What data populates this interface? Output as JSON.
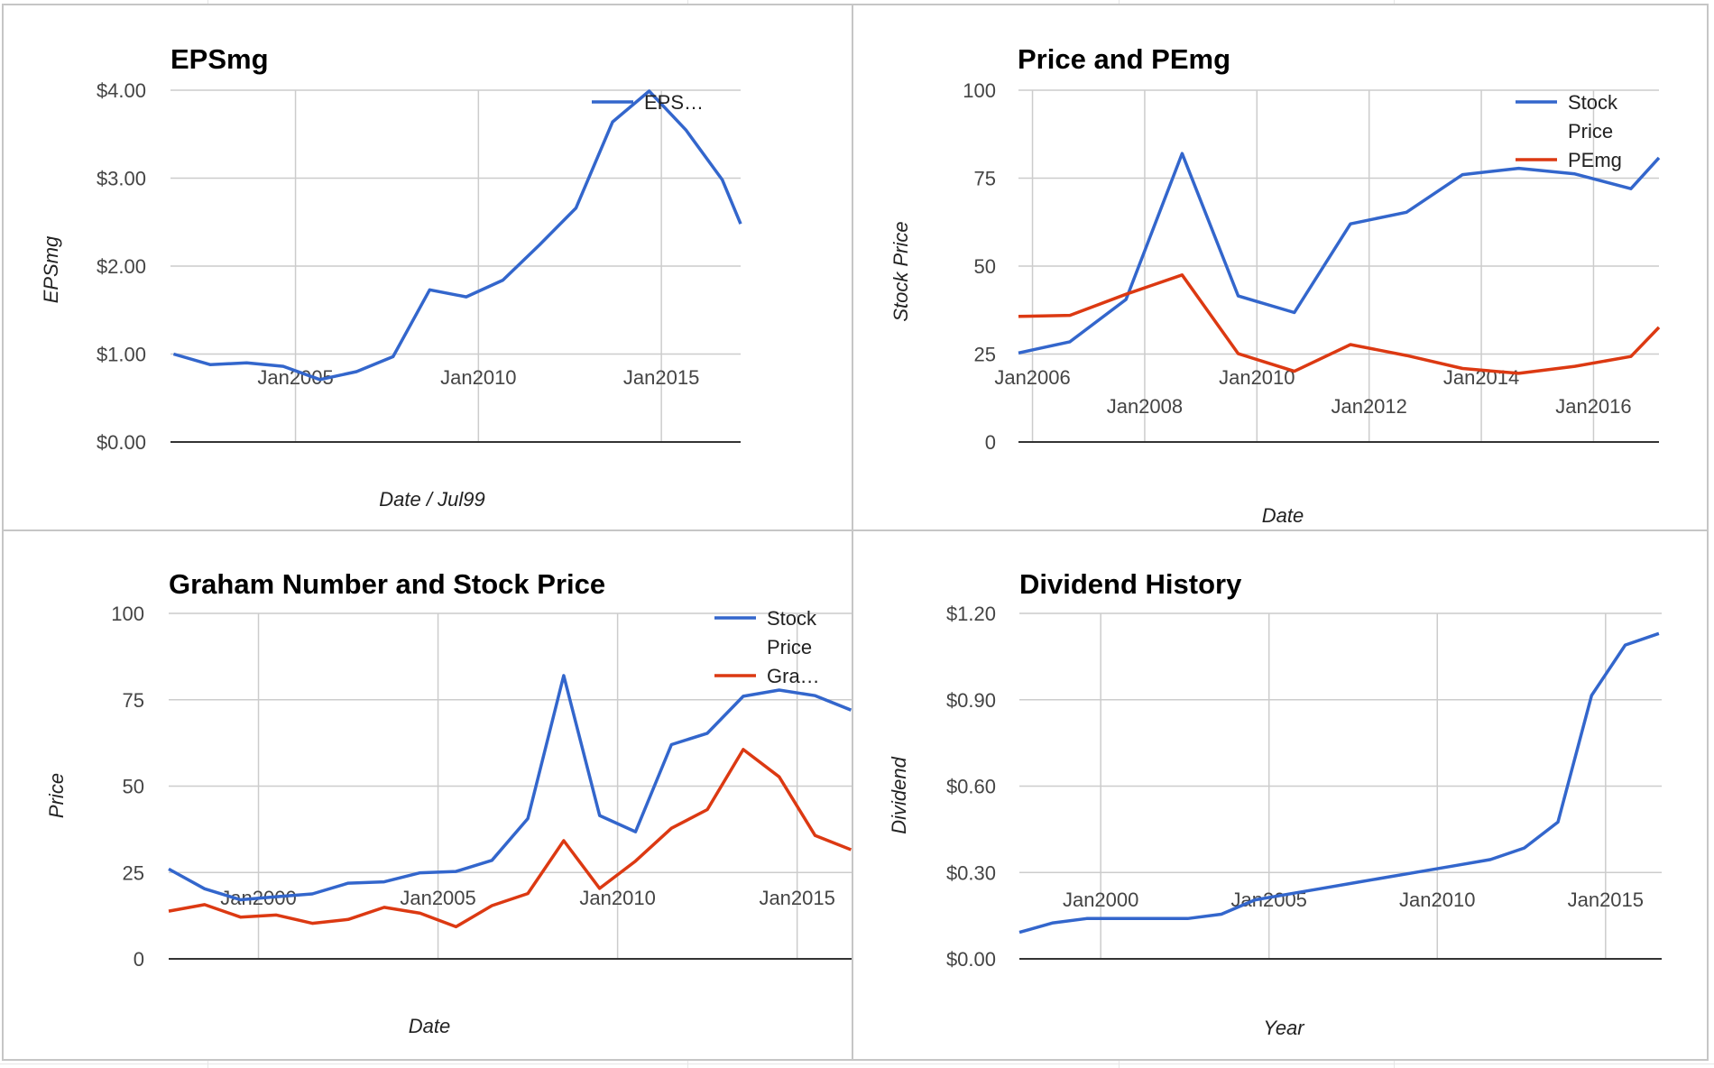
{
  "colors": {
    "blue": "#3366cc",
    "red": "#dc3912",
    "grid": "#cccccc",
    "baseline": "#333333"
  },
  "chart_data": [
    {
      "type": "line",
      "title": "EPSmg",
      "xlabel": "Date / Jul99",
      "ylabel": "EPSmg",
      "x_ticks": [
        "Jan2005",
        "Jan2010",
        "Jan2015"
      ],
      "y_ticks": [
        "$0.00",
        "$1.00",
        "$2.00",
        "$3.00",
        "$4.00"
      ],
      "xlim": [
        "2001-08-01",
        "2017-03-01"
      ],
      "ylim": [
        0,
        4
      ],
      "grid": true,
      "legend_position": "right",
      "series": [
        {
          "name": "EPS…",
          "color": "#3366cc",
          "points": [
            [
              "2001-09-01",
              1.0
            ],
            [
              "2002-09-01",
              0.88
            ],
            [
              "2003-09-01",
              0.9
            ],
            [
              "2004-09-01",
              0.86
            ],
            [
              "2005-09-01",
              0.71
            ],
            [
              "2006-09-01",
              0.8
            ],
            [
              "2007-09-01",
              0.97
            ],
            [
              "2008-09-01",
              1.73
            ],
            [
              "2009-09-01",
              1.65
            ],
            [
              "2010-09-01",
              1.84
            ],
            [
              "2011-09-01",
              2.24
            ],
            [
              "2012-09-01",
              2.66
            ],
            [
              "2013-09-01",
              3.64
            ],
            [
              "2014-09-01",
              3.99
            ],
            [
              "2015-09-01",
              3.55
            ],
            [
              "2016-09-01",
              2.98
            ],
            [
              "2017-03-01",
              2.48
            ]
          ]
        }
      ]
    },
    {
      "type": "line",
      "title": "Price and PEmg",
      "xlabel": "Date",
      "ylabel": "Stock Price",
      "x_ticks": [
        "Jan2006",
        "Jan2008",
        "Jan2010",
        "Jan2012",
        "Jan2014",
        "Jan2016"
      ],
      "y_ticks": [
        "0",
        "25",
        "50",
        "75",
        "100"
      ],
      "xlim": [
        "2005-10-01",
        "2017-03-01"
      ],
      "ylim": [
        0,
        100
      ],
      "grid": true,
      "legend_position": "right",
      "series": [
        {
          "name": "Stock Price",
          "color": "#3366cc",
          "points": [
            [
              "2005-10-01",
              25.3
            ],
            [
              "2006-09-01",
              28.5
            ],
            [
              "2007-09-01",
              40.5
            ],
            [
              "2008-09-01",
              82.0
            ],
            [
              "2009-09-01",
              41.5
            ],
            [
              "2010-09-01",
              36.8
            ],
            [
              "2011-09-01",
              62.0
            ],
            [
              "2012-09-01",
              65.3
            ],
            [
              "2013-09-01",
              76.0
            ],
            [
              "2014-09-01",
              77.8
            ],
            [
              "2015-09-01",
              76.2
            ],
            [
              "2016-09-01",
              72.0
            ],
            [
              "2017-03-01",
              80.8
            ]
          ]
        },
        {
          "name": "PEmg",
          "color": "#dc3912",
          "points": [
            [
              "2005-10-01",
              35.7
            ],
            [
              "2006-09-01",
              36.0
            ],
            [
              "2007-09-01",
              42.0
            ],
            [
              "2008-09-01",
              47.5
            ],
            [
              "2009-09-01",
              25.1
            ],
            [
              "2010-09-01",
              20.1
            ],
            [
              "2011-09-01",
              27.7
            ],
            [
              "2012-09-01",
              24.6
            ],
            [
              "2013-09-01",
              20.9
            ],
            [
              "2014-09-01",
              19.5
            ],
            [
              "2015-09-01",
              21.5
            ],
            [
              "2016-09-01",
              24.3
            ],
            [
              "2017-03-01",
              32.6
            ]
          ]
        }
      ]
    },
    {
      "type": "line",
      "title": "Graham Number and Stock Price",
      "xlabel": "Date",
      "ylabel": "Price",
      "x_ticks": [
        "Jan2000",
        "Jan2005",
        "Jan2010",
        "Jan2015"
      ],
      "y_ticks": [
        "0",
        "25",
        "50",
        "75",
        "100"
      ],
      "xlim": [
        "1997-07-01",
        "2016-09-01"
      ],
      "ylim": [
        0,
        100
      ],
      "grid": true,
      "legend_position": "right",
      "series": [
        {
          "name": "Stock Price",
          "color": "#3366cc",
          "points": [
            [
              "1997-07-01",
              26.0
            ],
            [
              "1998-07-01",
              20.3
            ],
            [
              "1999-07-01",
              17.1
            ],
            [
              "2000-07-01",
              18.0
            ],
            [
              "2001-07-01",
              18.8
            ],
            [
              "2002-07-01",
              21.9
            ],
            [
              "2003-07-01",
              22.3
            ],
            [
              "2004-07-01",
              24.9
            ],
            [
              "2005-07-01",
              25.3
            ],
            [
              "2006-07-01",
              28.5
            ],
            [
              "2007-07-01",
              40.6
            ],
            [
              "2008-07-01",
              82.0
            ],
            [
              "2009-07-01",
              41.5
            ],
            [
              "2010-07-01",
              36.8
            ],
            [
              "2011-07-01",
              62.0
            ],
            [
              "2012-07-01",
              65.3
            ],
            [
              "2013-07-01",
              76.0
            ],
            [
              "2014-07-01",
              77.8
            ],
            [
              "2015-07-01",
              76.2
            ],
            [
              "2016-07-01",
              72.0
            ]
          ]
        },
        {
          "name": "Gra…",
          "color": "#dc3912",
          "points": [
            [
              "1997-07-01",
              13.8
            ],
            [
              "1998-07-01",
              15.7
            ],
            [
              "1999-07-01",
              12.1
            ],
            [
              "2000-07-01",
              12.7
            ],
            [
              "2001-07-01",
              10.3
            ],
            [
              "2002-07-01",
              11.4
            ],
            [
              "2003-07-01",
              14.9
            ],
            [
              "2004-07-01",
              13.2
            ],
            [
              "2005-07-01",
              9.3
            ],
            [
              "2006-07-01",
              15.4
            ],
            [
              "2007-07-01",
              18.9
            ],
            [
              "2008-07-01",
              34.2
            ],
            [
              "2009-07-01",
              20.4
            ],
            [
              "2010-07-01",
              28.3
            ],
            [
              "2011-07-01",
              37.8
            ],
            [
              "2012-07-01",
              43.2
            ],
            [
              "2013-07-01",
              60.6
            ],
            [
              "2014-07-01",
              52.7
            ],
            [
              "2015-07-01",
              35.7
            ],
            [
              "2016-07-01",
              31.6
            ]
          ]
        }
      ]
    },
    {
      "type": "line",
      "title": "Dividend History",
      "xlabel": "Year",
      "ylabel": "Dividend",
      "x_ticks": [
        "Jan2000",
        "Jan2005",
        "Jan2010",
        "Jan2015"
      ],
      "y_ticks": [
        "$0.00",
        "$0.30",
        "$0.60",
        "$0.90",
        "$1.20"
      ],
      "xlim": [
        "1997-08-01",
        "2016-09-01"
      ],
      "ylim": [
        0,
        1.2
      ],
      "grid": true,
      "legend_position": "none",
      "series": [
        {
          "name": "",
          "color": "#3366cc",
          "points": [
            [
              "1997-08-01",
              0.092
            ],
            [
              "1998-08-01",
              0.125
            ],
            [
              "1999-08-01",
              0.14
            ],
            [
              "2000-08-01",
              0.14
            ],
            [
              "2001-08-01",
              0.14
            ],
            [
              "2002-08-01",
              0.14
            ],
            [
              "2003-08-01",
              0.155
            ],
            [
              "2004-08-01",
              0.205
            ],
            [
              "2005-08-01",
              0.225
            ],
            [
              "2006-08-01",
              0.245
            ],
            [
              "2007-08-01",
              0.265
            ],
            [
              "2008-08-01",
              0.285
            ],
            [
              "2009-08-01",
              0.305
            ],
            [
              "2010-08-01",
              0.325
            ],
            [
              "2011-08-01",
              0.345
            ],
            [
              "2012-08-01",
              0.385
            ],
            [
              "2013-08-01",
              0.475
            ],
            [
              "2014-08-01",
              0.915
            ],
            [
              "2015-08-01",
              1.09
            ],
            [
              "2016-08-01",
              1.13
            ]
          ]
        }
      ]
    }
  ]
}
